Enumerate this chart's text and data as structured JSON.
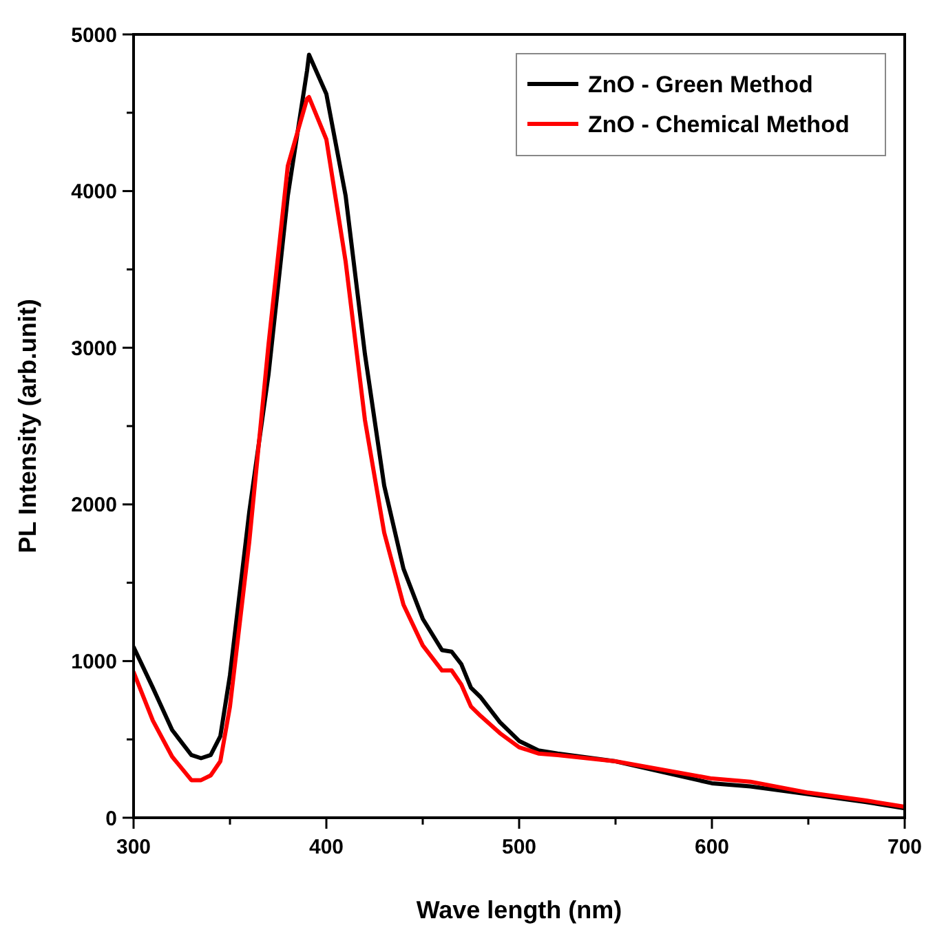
{
  "chart_data": {
    "type": "line",
    "xlabel": "Wave length (nm)",
    "ylabel": "PL Intensity (arb.unit)",
    "xlim": [
      300,
      700
    ],
    "ylim": [
      0,
      5000
    ],
    "xticks": [
      300,
      {
        "value": 350,
        "label": null
      },
      400,
      {
        "value": 450,
        "label": null
      },
      500,
      {
        "value": 550,
        "label": null
      },
      600,
      {
        "value": 650,
        "label": null
      },
      700
    ],
    "yticks": [
      0,
      {
        "value": 500,
        "label": null
      },
      1000,
      {
        "value": 1500,
        "label": null
      },
      2000,
      {
        "value": 2500,
        "label": null
      },
      3000,
      {
        "value": 3500,
        "label": null
      },
      4000,
      {
        "value": 4500,
        "label": null
      },
      5000
    ],
    "x": [
      300,
      310,
      320,
      330,
      335,
      340,
      345,
      350,
      360,
      370,
      380,
      390,
      391,
      400,
      410,
      420,
      430,
      440,
      450,
      460,
      465,
      470,
      475,
      480,
      490,
      500,
      510,
      520,
      550,
      600,
      620,
      650,
      680,
      700
    ],
    "series": [
      {
        "name": "ZnO - Green Method",
        "color": "#000000",
        "values": [
          1090,
          830,
          560,
          400,
          380,
          400,
          520,
          910,
          1950,
          2830,
          3970,
          4770,
          4870,
          4620,
          3970,
          2960,
          2120,
          1590,
          1270,
          1070,
          1060,
          980,
          830,
          770,
          610,
          490,
          430,
          410,
          360,
          220,
          200,
          150,
          100,
          60
        ]
      },
      {
        "name": "ZnO - Chemical Method",
        "color": "#ff0000",
        "values": [
          930,
          620,
          390,
          240,
          240,
          270,
          360,
          710,
          1760,
          3020,
          4160,
          4590,
          4600,
          4330,
          3550,
          2540,
          1820,
          1360,
          1100,
          940,
          940,
          850,
          710,
          650,
          540,
          450,
          410,
          400,
          360,
          250,
          230,
          160,
          110,
          70
        ]
      }
    ],
    "legend": "top right",
    "grid": false,
    "line_style": "solid",
    "marker": "none"
  }
}
